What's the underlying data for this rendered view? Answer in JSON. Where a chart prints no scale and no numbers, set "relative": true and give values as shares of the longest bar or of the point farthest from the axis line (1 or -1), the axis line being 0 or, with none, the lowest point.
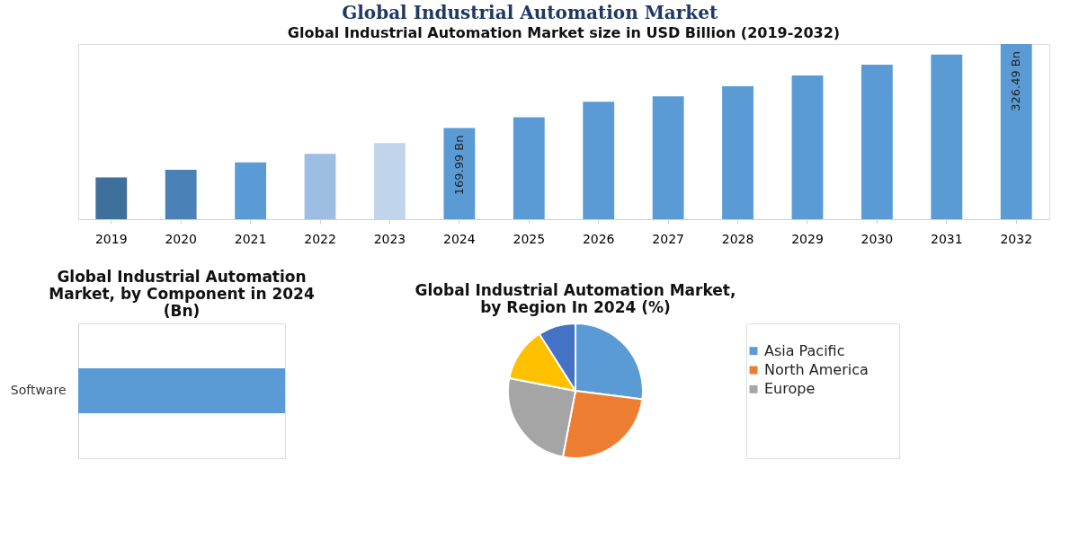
{
  "chart_data": [
    {
      "type": "bar",
      "title": "Global Industrial Automation Market size in USD Billion (2019-2032)",
      "annotations": [
        "Global Industrial Automation Market"
      ],
      "categories": [
        "2019",
        "2020",
        "2021",
        "2022",
        "2023",
        "2024",
        "2025",
        "2026",
        "2027",
        "2028",
        "2029",
        "2030",
        "2031",
        "2032"
      ],
      "values": [
        78,
        92,
        106,
        122,
        142,
        169.99,
        190,
        219,
        229,
        248,
        268,
        288,
        307,
        326.49
      ],
      "colors": [
        "#3f6f9b",
        "#4a82b7",
        "#5b9bd5",
        "#9dbde3",
        "#c0d4ec",
        "#5b9bd5",
        "#5b9bd5",
        "#5b9bd5",
        "#5b9bd5",
        "#5b9bd5",
        "#5b9bd5",
        "#5b9bd5",
        "#5b9bd5",
        "#5b9bd5"
      ],
      "value_labels": [
        null,
        null,
        null,
        null,
        null,
        "169.99 Bn",
        null,
        null,
        null,
        null,
        null,
        null,
        null,
        "326.49 Bn"
      ]
    },
    {
      "type": "bar",
      "orientation": "horizontal",
      "relative": true,
      "title": "Global Industrial Automation Market, by Component in 2024 (Bn)",
      "categories": [
        "Software"
      ],
      "values": [
        1
      ],
      "color": "#5b9bd5"
    },
    {
      "type": "pie",
      "title": "Global Industrial Automation Market, by Region In 2024 (%)",
      "categories": [
        "Asia Pacific",
        "North America",
        "Europe",
        null,
        null
      ],
      "values": [
        27,
        26,
        25,
        13,
        9
      ],
      "colors": [
        "#5b9bd5",
        "#ed7d31",
        "#a5a5a5",
        "#ffc000",
        "#4472c4"
      ],
      "legend": "right"
    }
  ]
}
